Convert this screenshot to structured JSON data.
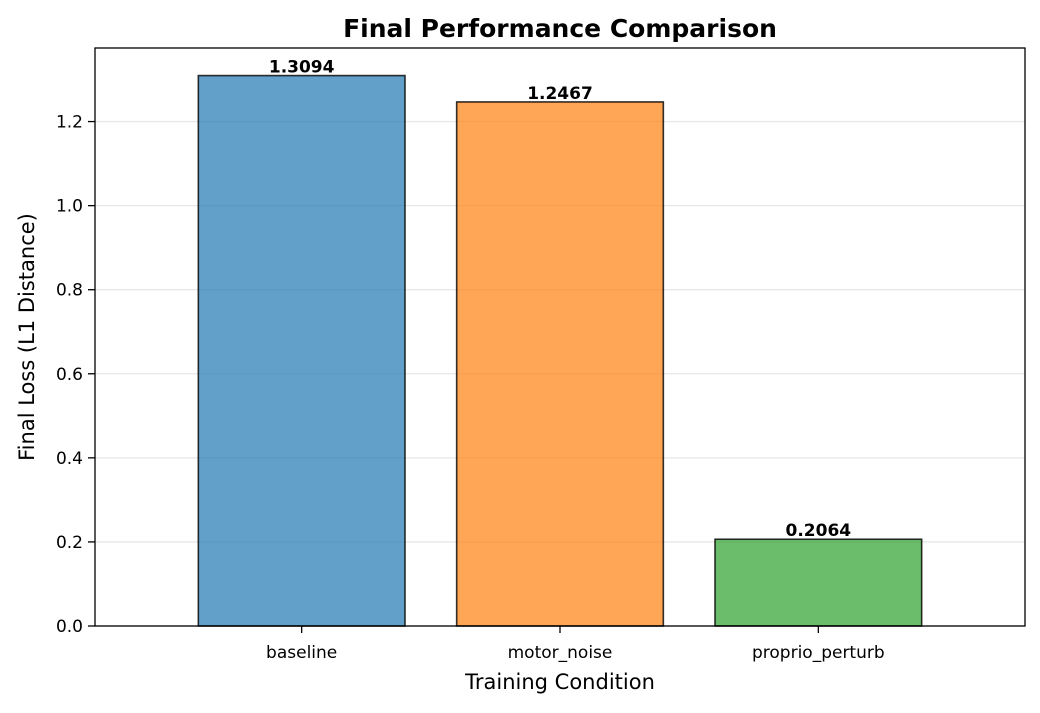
{
  "chart_data": {
    "type": "bar",
    "title": "Final Performance Comparison",
    "xlabel": "Training Condition",
    "ylabel": "Final Loss (L1 Distance)",
    "categories": [
      "baseline",
      "motor_noise",
      "proprio_perturb"
    ],
    "values": [
      1.3094,
      1.2467,
      0.2064
    ],
    "value_labels": [
      "1.3094",
      "1.2467",
      "0.2064"
    ],
    "bar_colors": [
      "#1f77b4",
      "#ff7f0e",
      "#2ca02c"
    ],
    "ylim": [
      0,
      1.375
    ],
    "yticks": [
      0.0,
      0.2,
      0.4,
      0.6,
      0.8,
      1.0,
      1.2
    ],
    "ytick_labels": [
      "0.0",
      "0.2",
      "0.4",
      "0.6",
      "0.8",
      "1.0",
      "1.2"
    ],
    "grid": "y",
    "legend": "none"
  }
}
